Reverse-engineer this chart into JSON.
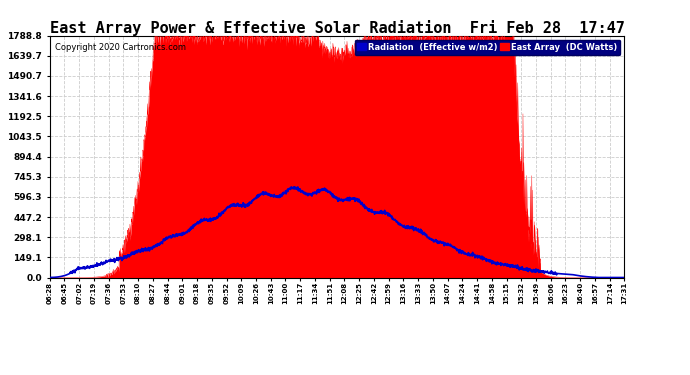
{
  "title": "East Array Power & Effective Solar Radiation  Fri Feb 28  17:47",
  "copyright": "Copyright 2020 Cartronics.com",
  "legend_radiation": "Radiation  (Effective w/m2)",
  "legend_array": "East Array  (DC Watts)",
  "yticks": [
    0.0,
    149.1,
    298.1,
    447.2,
    596.3,
    745.3,
    894.4,
    1043.5,
    1192.5,
    1341.6,
    1490.7,
    1639.7,
    1788.8
  ],
  "ymax": 1788.8,
  "ymin": 0.0,
  "background_color": "#ffffff",
  "plot_bg_color": "#ffffff",
  "title_color": "#000000",
  "title_fontsize": 11,
  "grid_color": "#cccccc",
  "grid_linestyle": "--",
  "radiation_color": "#0000cc",
  "array_fill_color": "#ff0000",
  "xtick_labels": [
    "06:28",
    "06:45",
    "07:02",
    "07:19",
    "07:36",
    "07:53",
    "08:10",
    "08:27",
    "08:44",
    "09:01",
    "09:18",
    "09:35",
    "09:52",
    "10:09",
    "10:26",
    "10:43",
    "11:00",
    "11:17",
    "11:34",
    "11:51",
    "12:08",
    "12:25",
    "12:42",
    "12:59",
    "13:16",
    "13:33",
    "13:50",
    "14:07",
    "14:24",
    "14:41",
    "14:58",
    "15:15",
    "15:32",
    "15:49",
    "16:06",
    "16:23",
    "16:40",
    "16:57",
    "17:14",
    "17:31"
  ]
}
